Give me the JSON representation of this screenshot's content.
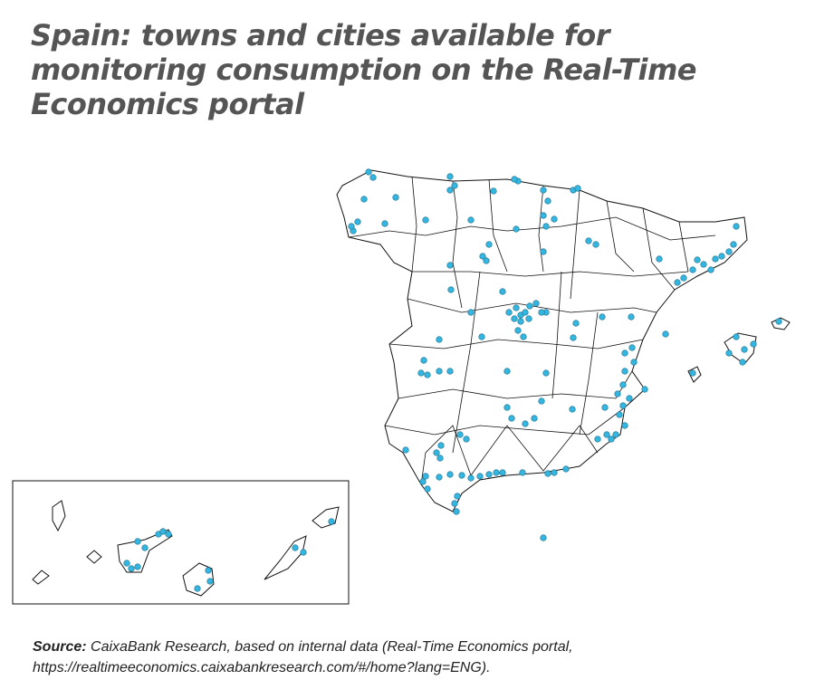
{
  "title": "Spain: towns and cities available for monitoring consumption on the Real-Time Economics portal",
  "source": {
    "label": "Source:",
    "text": " CaixaBank Research, based on internal data (Real-Time Economics portal,",
    "url_line": "https://realtimeeconomics.caixabankresearch.com/#/home?lang=ENG)."
  },
  "map": {
    "region": "Spain",
    "inset": "Canary Islands",
    "marker_color": "#35b6e0",
    "marker_outline": "#1d6f8a",
    "border_color": "#111111"
  }
}
